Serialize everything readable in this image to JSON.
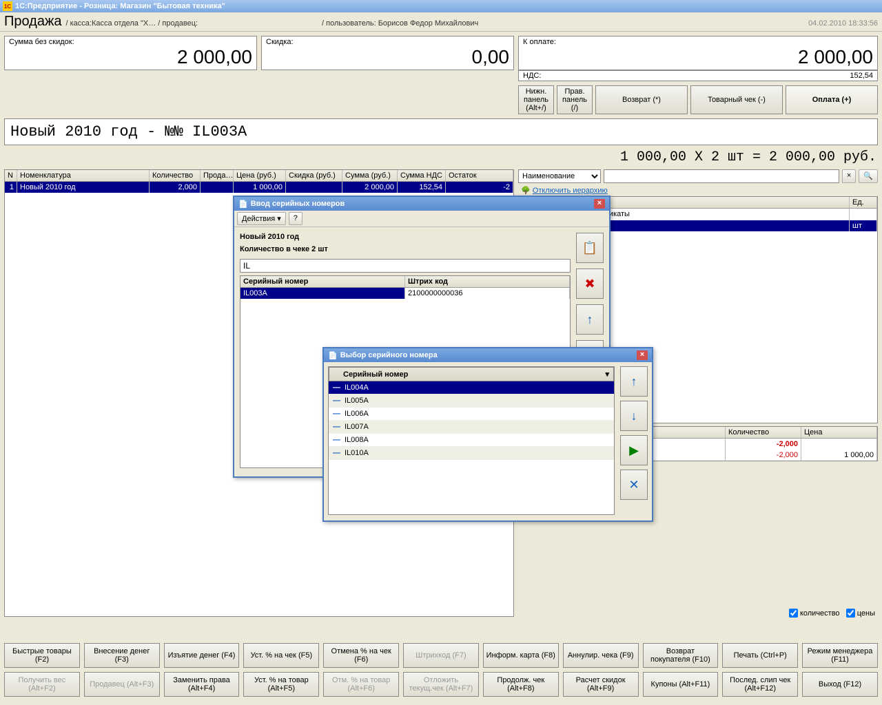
{
  "app": {
    "title": "1С:Предприятие - Розница: Магазин \"Бытовая техника\""
  },
  "page": {
    "title": "Продажа",
    "path": "/ касса:Касса отдела \"Х… / продавец:",
    "user": "/ пользователь: Борисов Федор Михайлович",
    "datetime": "04.02.2010 18:33:56"
  },
  "totals": {
    "sum_label": "Сумма без скидок:",
    "sum": "2 000,00",
    "discount_label": "Скидка:",
    "discount": "0,00",
    "due_label": "К оплате:",
    "due": "2 000,00",
    "nds_label": "НДС:",
    "nds": "152,54"
  },
  "item_line": "Новый 2010 год - №№ IL003A",
  "calc_line": "1 000,00  Х 2 шт = 2 000,00  руб.",
  "top_buttons": {
    "b1": "Нижн.\nпанель\n(Alt+/)",
    "b2": "Прав.\nпанель\n(/)",
    "b3": "Возврат (*)",
    "b4": "Товарный чек (-)",
    "b5": "Оплата (+)"
  },
  "grid": {
    "cols": {
      "n": "N",
      "name": "Номенклатура",
      "qty": "Количество",
      "sale": "Прода…",
      "price": "Цена (руб.)",
      "disc": "Скидка (руб.)",
      "sum": "Сумма (руб.)",
      "nds": "Сумма НДС",
      "rest": "Остаток"
    },
    "row": {
      "n": "1",
      "name": "Новый 2010 год",
      "qty": "2,000",
      "sale": "",
      "price": "1 000,00",
      "disc": "",
      "sum": "2 000,00",
      "nds": "152,54",
      "rest": "-2"
    }
  },
  "right": {
    "search_mode": "Наименование",
    "hierarchy": "Отключить иерархию",
    "cols": {
      "name": "Наименование",
      "unit": "Ед."
    },
    "rows": [
      {
        "name": "Подарочные сертификаты",
        "unit": "",
        "exp": true
      },
      {
        "name": "",
        "unit": "шт",
        "sel": true
      }
    ],
    "qty_col": "Количество",
    "price_col": "Цена",
    "qty1": "-2,000",
    "qty2": "-2,000",
    "price": "1 000,00",
    "chk_qty": "количество",
    "chk_price": "цены"
  },
  "dlg1": {
    "title": "Ввод серийных номеров",
    "actions": "Действия",
    "help": "?",
    "item": "Новый 2010 год",
    "qty": "Количество в чеке 2 шт",
    "input": "IL",
    "cols": {
      "serial": "Серийный номер",
      "barcode": "Штрих код"
    },
    "row": {
      "serial": "IL003A",
      "barcode": "2100000000036"
    }
  },
  "dlg2": {
    "title": "Выбор серийного номера",
    "col": "Серийный номер",
    "rows": [
      "IL004A",
      "IL005A",
      "IL006A",
      "IL007A",
      "IL008A",
      "IL010A"
    ],
    "sel": 0
  },
  "bottom": {
    "r1": [
      "Быстрые товары\n(F2)",
      "Внесение денег\n(F3)",
      "Изъятие денег (F4)",
      "Уст. % на чек (F5)",
      "Отмена % на чек\n(F6)",
      "Штрихкод (F7)",
      "Информ. карта (F8)",
      "Аннулир. чека (F9)",
      "Возврат\nпокупателя (F10)",
      "Печать (Ctrl+P)",
      "Режим менеджера\n(F11)"
    ],
    "r2": [
      "Получить вес\n(Alt+F2)",
      "Продавец (Alt+F3)",
      "Заменить права\n(Alt+F4)",
      "Уст. % на товар\n(Alt+F5)",
      "Отм. % на товар\n(Alt+F6)",
      "Отложить\nтекущ.чек (Alt+F7)",
      "Продолж. чек\n(Alt+F8)",
      "Расчет скидок\n(Alt+F9)",
      "Купоны (Alt+F11)",
      "Послед. слип чек\n(Alt+F12)",
      "Выход (F12)"
    ],
    "r1_disabled": [
      5
    ],
    "r2_disabled": [
      0,
      1,
      4,
      5
    ]
  },
  "colors": {
    "sel_bg": "#00008b",
    "neg": "#cc0000"
  }
}
